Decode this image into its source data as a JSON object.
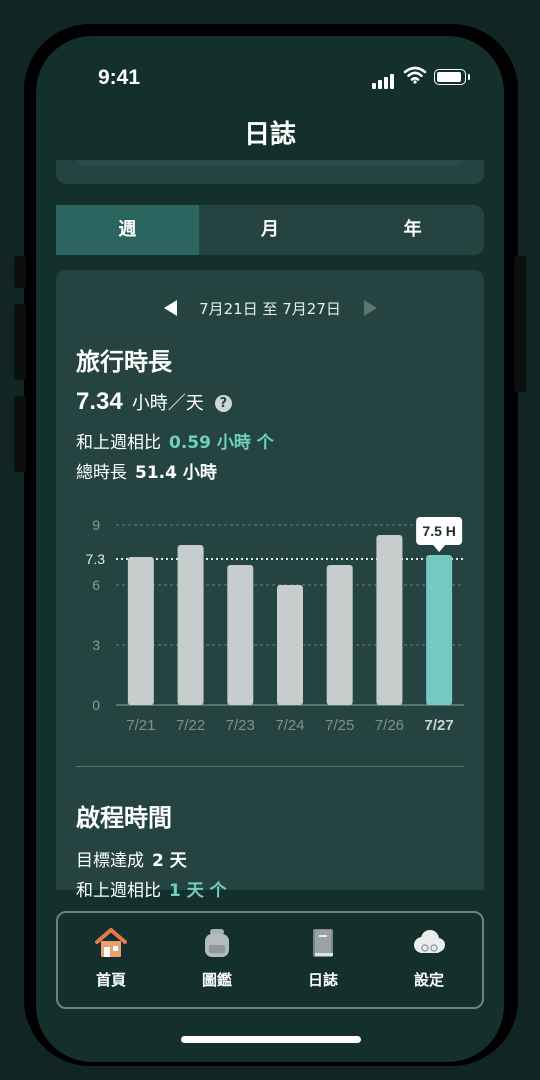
{
  "status": {
    "time": "9:41"
  },
  "header": {
    "title": "日誌"
  },
  "segments": [
    {
      "label": "週",
      "active": true
    },
    {
      "label": "月",
      "active": false
    },
    {
      "label": "年",
      "active": false
    }
  ],
  "travel": {
    "range": "7月21日 至 7月27日",
    "title": "旅行時長",
    "avg_value": "7.34",
    "avg_unit": "小時／天",
    "compare_label": "和上週相比",
    "compare_value": "0.59 小時 个",
    "total_label": "總時長",
    "total_value": "51.4 小時"
  },
  "chart_data": {
    "type": "bar",
    "categories": [
      "7/21",
      "7/22",
      "7/23",
      "7/24",
      "7/25",
      "7/26",
      "7/27"
    ],
    "values": [
      7.4,
      8.0,
      7.0,
      6.0,
      7.0,
      8.5,
      7.5
    ],
    "yticks": [
      0,
      3,
      6,
      9
    ],
    "ylim": [
      0,
      9
    ],
    "average_line": 7.3,
    "average_label": "7.3",
    "highlight_index": 6,
    "tooltip": "7.5 H",
    "bar_color": "#c7cccc",
    "highlight_color": "#76c8c2"
  },
  "departure": {
    "title": "啟程時間",
    "goal_label": "目標達成",
    "goal_value": "2 天",
    "compare_label": "和上週相比",
    "compare_value": "1 天 个"
  },
  "tabbar": [
    {
      "label": "首頁",
      "icon": "house-icon"
    },
    {
      "label": "圖鑑",
      "icon": "backpack-icon"
    },
    {
      "label": "日誌",
      "icon": "book-icon"
    },
    {
      "label": "設定",
      "icon": "cloud-gear-icon"
    }
  ]
}
